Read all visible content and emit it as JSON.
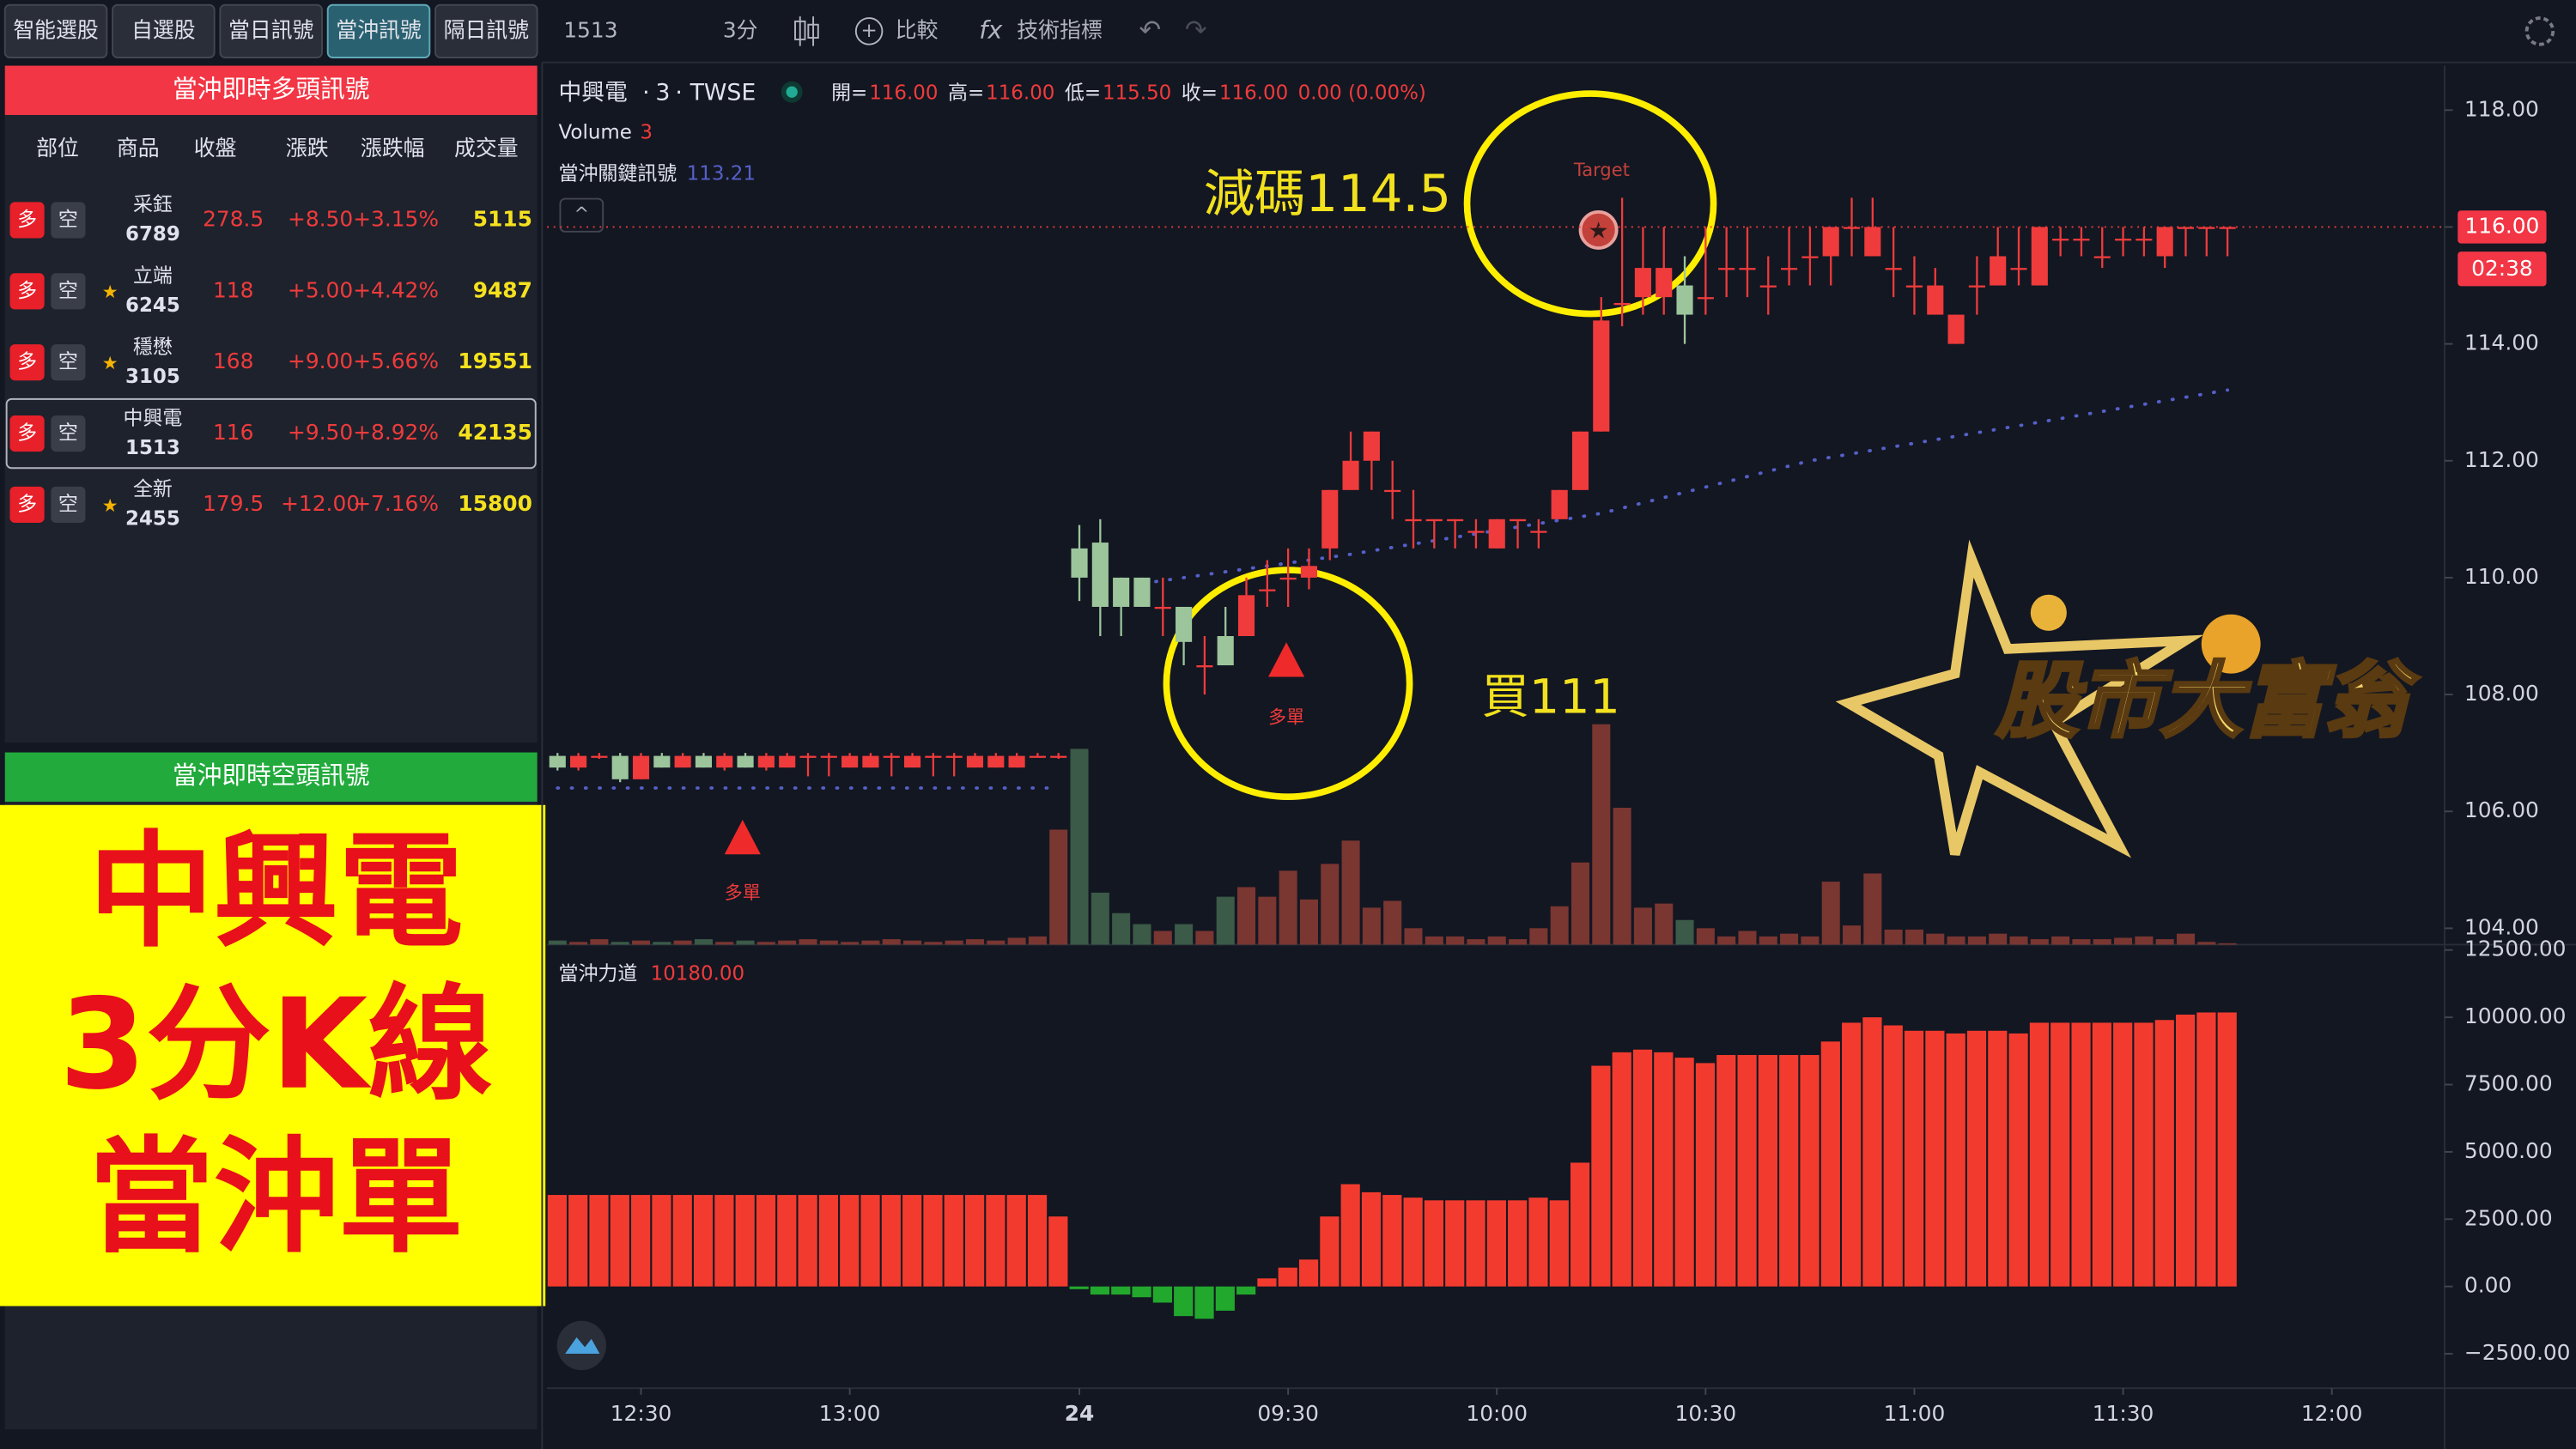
{
  "tabs": [
    "智能選股",
    "自選股",
    "當日訊號",
    "當沖訊號",
    "隔日訊號"
  ],
  "active_tab": 3,
  "toolbar": {
    "symbol": "1513",
    "interval": "3分",
    "compare": "比較",
    "indicators": "技術指標"
  },
  "long_panel": {
    "title": "當沖即時多頭訊號",
    "columns": [
      "部位",
      "商品",
      "收盤",
      "漲跌",
      "漲跌幅",
      "成交量"
    ],
    "long_button": "多",
    "short_button": "空",
    "selected_row": 3,
    "rows": [
      {
        "name": "采鈺",
        "code": "6789",
        "close": "278.5",
        "change": "+8.50",
        "pct": "+3.15%",
        "volume": "5115"
      },
      {
        "star": "★",
        "name": "立端",
        "code": "6245",
        "close": "118",
        "change": "+5.00",
        "pct": "+4.42%",
        "volume": "9487"
      },
      {
        "star": "★",
        "name": "穩懋",
        "code": "3105",
        "close": "168",
        "change": "+9.00",
        "pct": "+5.66%",
        "volume": "19551"
      },
      {
        "name": "中興電",
        "code": "1513",
        "close": "116",
        "change": "+9.50",
        "pct": "+8.92%",
        "volume": "42135"
      },
      {
        "star": "★",
        "name": "全新",
        "code": "2455",
        "close": "179.5",
        "change": "+12.00",
        "pct": "+7.16%",
        "volume": "15800"
      }
    ]
  },
  "short_panel": {
    "title": "當沖即時空頭訊號"
  },
  "overlay": {
    "lines": [
      "中興電",
      "3分K線",
      "當沖單"
    ]
  },
  "logo": "股市大富翁",
  "chart_data": [
    {
      "type": "candlestick",
      "title": "中興電",
      "interval": 3,
      "exchange": "TWSE",
      "header": [
        {
          "label": "開=",
          "value": "116.00"
        },
        {
          "label": "高=",
          "value": "116.00"
        },
        {
          "label": "低=",
          "value": "115.50"
        },
        {
          "label": "收=",
          "value": "116.00"
        }
      ],
      "change": "0.00 (0.00%)",
      "volume_label": "Volume",
      "volume_value": 3,
      "key_label": "當沖關鍵訊號",
      "key_value": 113.21,
      "up_color": "#ef3b3b",
      "down_color": "#9cc59c",
      "vol_up_color": "#7a3631",
      "vol_down_color": "#3b5a47",
      "key_color": "#5560c8",
      "xlim": [
        -0.5,
        90.4
      ],
      "ylim": [
        103.72,
        118.76
      ],
      "vlim": [
        0,
        1800
      ],
      "yticks": [
        {
          "value": 104,
          "label": "104.00"
        },
        {
          "value": 106,
          "label": "106.00"
        },
        {
          "value": 108,
          "label": "108.00"
        },
        {
          "value": 110,
          "label": "110.00"
        },
        {
          "value": 112,
          "label": "112.00"
        },
        {
          "value": 114,
          "label": "114.00"
        },
        {
          "value": 116,
          "label": "116.00"
        },
        {
          "value": 118,
          "label": "118.00"
        }
      ],
      "last_price": {
        "value": 116,
        "label": "116.00"
      },
      "countdown": "02:38",
      "annotations": {
        "reduce": "減碼114.5",
        "buy": "買111",
        "target": "Target",
        "long_entry": [
          "多單",
          "多單"
        ]
      },
      "x": [
        0,
        1,
        2,
        3,
        4,
        5,
        6,
        7,
        8,
        9,
        10,
        11,
        12,
        13,
        14,
        15,
        16,
        17,
        18,
        19,
        20,
        21,
        22,
        23,
        24,
        25,
        26,
        27,
        28,
        29,
        30,
        31,
        32,
        33,
        34,
        35,
        36,
        37,
        38,
        39,
        40,
        41,
        42,
        43,
        44,
        45,
        46,
        47,
        48,
        49,
        50,
        51,
        52,
        53,
        54,
        55,
        56,
        57,
        58,
        59,
        60,
        61,
        62,
        63,
        64,
        65,
        66,
        67,
        68,
        69,
        70,
        71,
        72,
        73,
        74,
        75,
        76,
        77,
        78,
        79,
        80
      ],
      "ohlc": [
        [
          106.95,
          107.0,
          106.7,
          106.75
        ],
        [
          106.75,
          107.0,
          106.7,
          106.95
        ],
        [
          106.95,
          107.0,
          106.9,
          106.95
        ],
        [
          106.95,
          107.0,
          106.5,
          106.55
        ],
        [
          106.55,
          107.0,
          106.55,
          106.95
        ],
        [
          106.95,
          107.0,
          106.75,
          106.75
        ],
        [
          106.75,
          107.0,
          106.75,
          106.95
        ],
        [
          106.95,
          107.0,
          106.75,
          106.75
        ],
        [
          106.75,
          107.0,
          106.7,
          106.95
        ],
        [
          106.95,
          107.0,
          106.75,
          106.75
        ],
        [
          106.75,
          107.0,
          106.7,
          106.95
        ],
        [
          106.75,
          107.0,
          106.75,
          106.95
        ],
        [
          106.95,
          107.0,
          106.6,
          106.95
        ],
        [
          106.95,
          107.0,
          106.6,
          106.95
        ],
        [
          106.75,
          107.0,
          106.75,
          106.95
        ],
        [
          106.75,
          107.0,
          106.75,
          106.95
        ],
        [
          106.95,
          107.0,
          106.6,
          106.95
        ],
        [
          106.75,
          107.0,
          106.75,
          106.95
        ],
        [
          106.95,
          107.0,
          106.6,
          106.95
        ],
        [
          106.95,
          107.0,
          106.6,
          106.95
        ],
        [
          106.75,
          107.0,
          106.75,
          106.95
        ],
        [
          106.75,
          107.0,
          106.75,
          106.95
        ],
        [
          106.75,
          107.0,
          106.75,
          106.95
        ],
        [
          106.95,
          107.0,
          106.95,
          106.95
        ],
        [
          106.95,
          107.0,
          106.9,
          106.95
        ],
        [
          110.5,
          110.9,
          109.6,
          110.0
        ],
        [
          110.6,
          111.0,
          109.0,
          109.5
        ],
        [
          110.0,
          110.0,
          109.0,
          109.5
        ],
        [
          110.0,
          110.0,
          109.5,
          109.5
        ],
        [
          109.5,
          110.0,
          109.0,
          109.5
        ],
        [
          109.5,
          109.5,
          108.5,
          108.9
        ],
        [
          108.5,
          109.0,
          108.0,
          108.5
        ],
        [
          109.0,
          109.5,
          108.5,
          108.5
        ],
        [
          109.0,
          110.0,
          109.0,
          109.7
        ],
        [
          109.8,
          110.3,
          109.5,
          109.8
        ],
        [
          110.0,
          110.5,
          109.5,
          110.0
        ],
        [
          110.0,
          110.5,
          109.8,
          110.2
        ],
        [
          110.5,
          111.5,
          110.3,
          111.5
        ],
        [
          111.5,
          112.5,
          111.5,
          112.0
        ],
        [
          112.0,
          112.5,
          111.5,
          112.5
        ],
        [
          111.5,
          112.0,
          111.0,
          111.5
        ],
        [
          111.0,
          111.5,
          110.5,
          111.0
        ],
        [
          111.0,
          111.0,
          110.5,
          111.0
        ],
        [
          111.0,
          111.0,
          110.5,
          111.0
        ],
        [
          110.8,
          111.0,
          110.5,
          110.8
        ],
        [
          110.5,
          111.0,
          110.5,
          111.0
        ],
        [
          111.0,
          111.0,
          110.5,
          111.0
        ],
        [
          110.8,
          111.0,
          110.5,
          110.8
        ],
        [
          111.0,
          111.5,
          111.0,
          111.5
        ],
        [
          111.5,
          112.5,
          111.5,
          112.5
        ],
        [
          112.5,
          114.8,
          112.5,
          114.4
        ],
        [
          114.7,
          116.5,
          114.3,
          114.7
        ],
        [
          114.8,
          116.0,
          114.5,
          115.3
        ],
        [
          114.8,
          116.0,
          114.5,
          115.3
        ],
        [
          115.0,
          115.5,
          114.0,
          114.5
        ],
        [
          114.8,
          116.0,
          114.5,
          114.8
        ],
        [
          115.3,
          116.0,
          114.8,
          115.3
        ],
        [
          115.3,
          116.0,
          114.8,
          115.3
        ],
        [
          115.0,
          115.5,
          114.5,
          115.0
        ],
        [
          115.3,
          116.0,
          115.0,
          115.3
        ],
        [
          115.5,
          116.0,
          115.0,
          115.5
        ],
        [
          115.5,
          116.0,
          115.0,
          116.0
        ],
        [
          116.0,
          116.5,
          115.5,
          116.0
        ],
        [
          115.5,
          116.5,
          115.5,
          116.0
        ],
        [
          115.3,
          116.0,
          114.8,
          115.3
        ],
        [
          115.0,
          115.5,
          114.5,
          115.0
        ],
        [
          114.5,
          115.3,
          114.5,
          115.0
        ],
        [
          114.0,
          114.5,
          114.0,
          114.5
        ],
        [
          115.0,
          115.5,
          114.5,
          115.0
        ],
        [
          115.0,
          116.0,
          115.0,
          115.5
        ],
        [
          115.3,
          116.0,
          115.0,
          115.3
        ],
        [
          115.0,
          116.0,
          115.0,
          116.0
        ],
        [
          115.8,
          116.0,
          115.5,
          115.8
        ],
        [
          115.8,
          116.0,
          115.5,
          115.8
        ],
        [
          115.5,
          116.0,
          115.3,
          115.5
        ],
        [
          115.8,
          116.0,
          115.5,
          115.8
        ],
        [
          115.8,
          116.0,
          115.5,
          115.8
        ],
        [
          115.5,
          116.0,
          115.3,
          116.0
        ],
        [
          116.0,
          116.0,
          115.5,
          116.0
        ],
        [
          116.0,
          116.0,
          115.5,
          116.0
        ],
        [
          116.0,
          116.0,
          115.5,
          116.0
        ]
      ],
      "volume": [
        30,
        20,
        40,
        20,
        30,
        20,
        30,
        40,
        20,
        30,
        20,
        30,
        40,
        30,
        20,
        30,
        40,
        30,
        20,
        30,
        40,
        30,
        50,
        60,
        840,
        1430,
        380,
        230,
        150,
        100,
        150,
        100,
        350,
        420,
        350,
        540,
        330,
        590,
        760,
        270,
        320,
        120,
        60,
        60,
        40,
        60,
        40,
        120,
        280,
        600,
        1610,
        1000,
        270,
        300,
        180,
        120,
        60,
        100,
        60,
        80,
        60,
        460,
        140,
        520,
        110,
        110,
        80,
        60,
        60,
        80,
        60,
        40,
        60,
        40,
        40,
        50,
        60,
        40,
        80,
        20,
        10
      ],
      "key_line": {
        "x": [
          0,
          24,
          25,
          28,
          38,
          50,
          60,
          70,
          80
        ],
        "values": [
          106.4,
          106.4,
          null,
          109.9,
          110.4,
          111.1,
          112.0,
          112.6,
          113.21
        ]
      }
    },
    {
      "type": "bar",
      "title": "當沖力道",
      "last_value": {
        "value": 10180,
        "label": "10180.00"
      },
      "up_color": "#f23b2e",
      "down_color": "#22a82d",
      "xlim": [
        -0.5,
        90.4
      ],
      "ylim": [
        -3780,
        12700
      ],
      "yticks": [
        {
          "value": -2500,
          "label": "−2500.00"
        },
        {
          "value": 0,
          "label": "0.00"
        },
        {
          "value": 2500,
          "label": "2500.00"
        },
        {
          "value": 5000,
          "label": "5000.00"
        },
        {
          "value": 7500,
          "label": "7500.00"
        },
        {
          "value": 10000,
          "label": "10000.00"
        },
        {
          "value": 12500,
          "label": "12500.00"
        }
      ],
      "xticks": [
        {
          "value": 4,
          "label": "12:30"
        },
        {
          "value": 14,
          "label": "13:00"
        },
        {
          "value": 25,
          "label": "24"
        },
        {
          "value": 35,
          "label": "09:30"
        },
        {
          "value": 45,
          "label": "10:00"
        },
        {
          "value": 55,
          "label": "10:30"
        },
        {
          "value": 65,
          "label": "11:00"
        },
        {
          "value": 75,
          "label": "11:30"
        },
        {
          "value": 85,
          "label": "12:00"
        }
      ],
      "x": [
        0,
        1,
        2,
        3,
        4,
        5,
        6,
        7,
        8,
        9,
        10,
        11,
        12,
        13,
        14,
        15,
        16,
        17,
        18,
        19,
        20,
        21,
        22,
        23,
        24,
        25,
        26,
        27,
        28,
        29,
        30,
        31,
        32,
        33,
        34,
        35,
        36,
        37,
        38,
        39,
        40,
        41,
        42,
        43,
        44,
        45,
        46,
        47,
        48,
        49,
        50,
        51,
        52,
        53,
        54,
        55,
        56,
        57,
        58,
        59,
        60,
        61,
        62,
        63,
        64,
        65,
        66,
        67,
        68,
        69,
        70,
        71,
        72,
        73,
        74,
        75,
        76,
        77,
        78,
        79,
        80
      ],
      "values": [
        3400,
        3400,
        3400,
        3400,
        3400,
        3400,
        3400,
        3400,
        3400,
        3400,
        3400,
        3400,
        3400,
        3400,
        3400,
        3400,
        3400,
        3400,
        3400,
        3400,
        3400,
        3400,
        3400,
        3400,
        2600,
        -100,
        -300,
        -300,
        -400,
        -600,
        -1100,
        -1200,
        -900,
        -300,
        300,
        700,
        1000,
        2600,
        3800,
        3500,
        3400,
        3300,
        3200,
        3200,
        3200,
        3200,
        3200,
        3300,
        3200,
        4600,
        8200,
        8700,
        8800,
        8700,
        8500,
        8300,
        8600,
        8600,
        8600,
        8600,
        8600,
        9100,
        9800,
        10000,
        9700,
        9500,
        9500,
        9400,
        9500,
        9500,
        9400,
        9800,
        9800,
        9800,
        9800,
        9800,
        9800,
        9900,
        10100,
        10180,
        10180
      ]
    }
  ]
}
